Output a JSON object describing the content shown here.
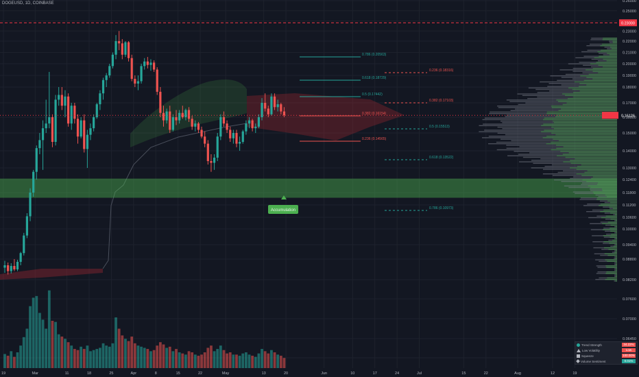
{
  "header": {
    "symbol": "DOGEUSD, 1D, COINBASE"
  },
  "colors": {
    "background": "#131722",
    "grid": "#1e222d",
    "up": "#26a69a",
    "down": "#ef5350",
    "green_zone": "#4caf50",
    "red_zone": "#b22833",
    "price_tag": "#f23645",
    "fib_green": "#26a69a",
    "fib_red": "#ef5350"
  },
  "price_axis": {
    "labels": [
      "0.26000",
      "0.25000",
      "0.24000",
      "0.23000",
      "0.22000",
      "0.21000",
      "0.20000",
      "0.19000",
      "0.18000",
      "0.17000",
      "0.16000",
      "0.15000",
      "0.14000",
      "0.13000",
      "0.12400",
      "0.11800",
      "0.11200",
      "0.10600",
      "0.10000",
      "0.09400",
      "0.08800",
      "0.08200",
      "0.07600",
      "0.07000",
      "0.06450",
      "0.05900",
      "0.05400",
      "0.04900",
      "0.04400",
      "0.03900",
      "0.03400"
    ],
    "current_price_tag": "0.16126",
    "resistance_tag": "0.23000"
  },
  "time_axis": [
    {
      "label": "19",
      "day": 0
    },
    {
      "label": "Mar",
      "day": 10
    },
    {
      "label": "11",
      "day": 20
    },
    {
      "label": "18",
      "day": 27
    },
    {
      "label": "25",
      "day": 34
    },
    {
      "label": "Apr",
      "day": 41
    },
    {
      "label": "8",
      "day": 48
    },
    {
      "label": "15",
      "day": 55
    },
    {
      "label": "22",
      "day": 62
    },
    {
      "label": "May",
      "day": 70
    },
    {
      "label": "13",
      "day": 82
    },
    {
      "label": "20",
      "day": 89
    },
    {
      "label": "Jun",
      "day": 101
    },
    {
      "label": "10",
      "day": 110
    },
    {
      "label": "17",
      "day": 117
    },
    {
      "label": "24",
      "day": 124
    },
    {
      "label": "Jul",
      "day": 131
    },
    {
      "label": "15",
      "day": 145
    },
    {
      "label": "22",
      "day": 152
    },
    {
      "label": "Aug",
      "day": 162
    },
    {
      "label": "12",
      "day": 173
    },
    {
      "label": "19",
      "day": 180
    }
  ],
  "fib_levels": [
    {
      "text": "0.786 (0.20563)",
      "color": "green"
    },
    {
      "text": "0.618 (0.18729)",
      "color": "green"
    },
    {
      "text": "0.236 (0.18316)",
      "color": "red"
    },
    {
      "text": "0.5 (0.17442)",
      "color": "green"
    },
    {
      "text": "0.382 (0.17103)",
      "color": "red"
    },
    {
      "text": "0.382 (0.16154)",
      "color": "red"
    },
    {
      "text": "0.5 (0.15513)",
      "color": "green"
    },
    {
      "text": "0.236 (0.14565)",
      "color": "red"
    },
    {
      "text": "0.618 (0.13522)",
      "color": "green"
    },
    {
      "text": "0.786 (0.10973)",
      "color": "green"
    }
  ],
  "annotation": {
    "text": "Accumulation"
  },
  "indicator_panel": [
    {
      "label": "Trend Strength",
      "value": "34.22%",
      "icon": "circle-icon",
      "color": "#ef5350"
    },
    {
      "label": "Low Volatility",
      "value": "Low",
      "icon": "triangle-icon",
      "color": "#ef5350"
    },
    {
      "label": "Squeeze",
      "value": "100.00%",
      "icon": "square-icon",
      "color": "#ef5350"
    },
    {
      "label": "Volume Sentiment",
      "value": "0.01%",
      "icon": "diamond-icon",
      "color": "#26a69a"
    }
  ],
  "chart_data": {
    "type": "candlestick",
    "symbol": "DOGEUSD",
    "interval": "1D",
    "exchange": "COINBASE",
    "candles": [
      {
        "o": 0.0855,
        "h": 0.0875,
        "l": 0.084,
        "c": 0.0862,
        "v": 25
      },
      {
        "o": 0.0862,
        "h": 0.087,
        "l": 0.0835,
        "c": 0.0845,
        "v": 22
      },
      {
        "o": 0.0845,
        "h": 0.0868,
        "l": 0.0838,
        "c": 0.086,
        "v": 30
      },
      {
        "o": 0.086,
        "h": 0.088,
        "l": 0.0845,
        "c": 0.085,
        "v": 20
      },
      {
        "o": 0.085,
        "h": 0.0878,
        "l": 0.0845,
        "c": 0.0872,
        "v": 28
      },
      {
        "o": 0.0872,
        "h": 0.091,
        "l": 0.0862,
        "c": 0.0905,
        "v": 40
      },
      {
        "o": 0.0905,
        "h": 0.0985,
        "l": 0.0895,
        "c": 0.0975,
        "v": 55
      },
      {
        "o": 0.0975,
        "h": 0.108,
        "l": 0.0965,
        "c": 0.1065,
        "v": 70
      },
      {
        "o": 0.1065,
        "h": 0.12,
        "l": 0.104,
        "c": 0.118,
        "v": 110
      },
      {
        "o": 0.118,
        "h": 0.129,
        "l": 0.116,
        "c": 0.128,
        "v": 125
      },
      {
        "o": 0.128,
        "h": 0.143,
        "l": 0.124,
        "c": 0.1415,
        "v": 128
      },
      {
        "o": 0.1415,
        "h": 0.15,
        "l": 0.138,
        "c": 0.146,
        "v": 98
      },
      {
        "o": 0.146,
        "h": 0.158,
        "l": 0.129,
        "c": 0.153,
        "v": 86
      },
      {
        "o": 0.153,
        "h": 0.172,
        "l": 0.15,
        "c": 0.156,
        "v": 70
      },
      {
        "o": 0.156,
        "h": 0.193,
        "l": 0.153,
        "c": 0.16,
        "v": 138
      },
      {
        "o": 0.16,
        "h": 0.162,
        "l": 0.142,
        "c": 0.145,
        "v": 84
      },
      {
        "o": 0.145,
        "h": 0.175,
        "l": 0.143,
        "c": 0.172,
        "v": 82
      },
      {
        "o": 0.172,
        "h": 0.18,
        "l": 0.168,
        "c": 0.175,
        "v": 60
      },
      {
        "o": 0.175,
        "h": 0.18,
        "l": 0.165,
        "c": 0.168,
        "v": 56
      },
      {
        "o": 0.168,
        "h": 0.178,
        "l": 0.16,
        "c": 0.174,
        "v": 52
      },
      {
        "o": 0.174,
        "h": 0.176,
        "l": 0.154,
        "c": 0.156,
        "v": 46
      },
      {
        "o": 0.156,
        "h": 0.17,
        "l": 0.152,
        "c": 0.168,
        "v": 40
      },
      {
        "o": 0.168,
        "h": 0.17,
        "l": 0.156,
        "c": 0.159,
        "v": 34
      },
      {
        "o": 0.159,
        "h": 0.162,
        "l": 0.144,
        "c": 0.148,
        "v": 32
      },
      {
        "o": 0.148,
        "h": 0.16,
        "l": 0.147,
        "c": 0.158,
        "v": 38
      },
      {
        "o": 0.158,
        "h": 0.162,
        "l": 0.139,
        "c": 0.141,
        "v": 34
      },
      {
        "o": 0.141,
        "h": 0.152,
        "l": 0.13,
        "c": 0.149,
        "v": 40
      },
      {
        "o": 0.149,
        "h": 0.156,
        "l": 0.146,
        "c": 0.153,
        "v": 30
      },
      {
        "o": 0.153,
        "h": 0.162,
        "l": 0.151,
        "c": 0.16,
        "v": 32
      },
      {
        "o": 0.16,
        "h": 0.17,
        "l": 0.159,
        "c": 0.169,
        "v": 34
      },
      {
        "o": 0.169,
        "h": 0.178,
        "l": 0.165,
        "c": 0.176,
        "v": 36
      },
      {
        "o": 0.176,
        "h": 0.188,
        "l": 0.172,
        "c": 0.186,
        "v": 44
      },
      {
        "o": 0.186,
        "h": 0.192,
        "l": 0.18,
        "c": 0.19,
        "v": 40
      },
      {
        "o": 0.19,
        "h": 0.2,
        "l": 0.188,
        "c": 0.198,
        "v": 38
      },
      {
        "o": 0.198,
        "h": 0.21,
        "l": 0.196,
        "c": 0.208,
        "v": 44
      },
      {
        "o": 0.208,
        "h": 0.226,
        "l": 0.204,
        "c": 0.22,
        "v": 90
      },
      {
        "o": 0.22,
        "h": 0.23,
        "l": 0.212,
        "c": 0.218,
        "v": 70
      },
      {
        "o": 0.218,
        "h": 0.222,
        "l": 0.204,
        "c": 0.208,
        "v": 58
      },
      {
        "o": 0.208,
        "h": 0.22,
        "l": 0.206,
        "c": 0.219,
        "v": 52
      },
      {
        "o": 0.219,
        "h": 0.22,
        "l": 0.202,
        "c": 0.205,
        "v": 48
      },
      {
        "o": 0.205,
        "h": 0.208,
        "l": 0.185,
        "c": 0.187,
        "v": 56
      },
      {
        "o": 0.187,
        "h": 0.19,
        "l": 0.18,
        "c": 0.183,
        "v": 44
      },
      {
        "o": 0.183,
        "h": 0.19,
        "l": 0.178,
        "c": 0.185,
        "v": 40
      },
      {
        "o": 0.185,
        "h": 0.2,
        "l": 0.183,
        "c": 0.198,
        "v": 38
      },
      {
        "o": 0.198,
        "h": 0.205,
        "l": 0.195,
        "c": 0.202,
        "v": 36
      },
      {
        "o": 0.202,
        "h": 0.206,
        "l": 0.196,
        "c": 0.199,
        "v": 34
      },
      {
        "o": 0.199,
        "h": 0.204,
        "l": 0.194,
        "c": 0.201,
        "v": 30
      },
      {
        "o": 0.201,
        "h": 0.203,
        "l": 0.193,
        "c": 0.195,
        "v": 32
      },
      {
        "o": 0.195,
        "h": 0.197,
        "l": 0.175,
        "c": 0.177,
        "v": 40
      },
      {
        "o": 0.177,
        "h": 0.18,
        "l": 0.16,
        "c": 0.163,
        "v": 46
      },
      {
        "o": 0.163,
        "h": 0.168,
        "l": 0.154,
        "c": 0.158,
        "v": 42
      },
      {
        "o": 0.158,
        "h": 0.166,
        "l": 0.156,
        "c": 0.164,
        "v": 36
      },
      {
        "o": 0.164,
        "h": 0.168,
        "l": 0.15,
        "c": 0.152,
        "v": 38
      },
      {
        "o": 0.152,
        "h": 0.162,
        "l": 0.151,
        "c": 0.16,
        "v": 30
      },
      {
        "o": 0.16,
        "h": 0.165,
        "l": 0.155,
        "c": 0.158,
        "v": 34
      },
      {
        "o": 0.158,
        "h": 0.165,
        "l": 0.156,
        "c": 0.163,
        "v": 28
      },
      {
        "o": 0.163,
        "h": 0.168,
        "l": 0.159,
        "c": 0.16,
        "v": 26
      },
      {
        "o": 0.16,
        "h": 0.166,
        "l": 0.158,
        "c": 0.165,
        "v": 24
      },
      {
        "o": 0.165,
        "h": 0.167,
        "l": 0.157,
        "c": 0.159,
        "v": 30
      },
      {
        "o": 0.159,
        "h": 0.161,
        "l": 0.152,
        "c": 0.154,
        "v": 28
      },
      {
        "o": 0.154,
        "h": 0.158,
        "l": 0.151,
        "c": 0.156,
        "v": 24
      },
      {
        "o": 0.156,
        "h": 0.157,
        "l": 0.15,
        "c": 0.152,
        "v": 22
      },
      {
        "o": 0.152,
        "h": 0.154,
        "l": 0.147,
        "c": 0.148,
        "v": 24
      },
      {
        "o": 0.148,
        "h": 0.151,
        "l": 0.142,
        "c": 0.144,
        "v": 28
      },
      {
        "o": 0.144,
        "h": 0.146,
        "l": 0.132,
        "c": 0.134,
        "v": 36
      },
      {
        "o": 0.134,
        "h": 0.138,
        "l": 0.128,
        "c": 0.133,
        "v": 40
      },
      {
        "o": 0.133,
        "h": 0.138,
        "l": 0.129,
        "c": 0.136,
        "v": 30
      },
      {
        "o": 0.136,
        "h": 0.15,
        "l": 0.134,
        "c": 0.148,
        "v": 34
      },
      {
        "o": 0.148,
        "h": 0.162,
        "l": 0.146,
        "c": 0.16,
        "v": 40
      },
      {
        "o": 0.16,
        "h": 0.164,
        "l": 0.154,
        "c": 0.156,
        "v": 32
      },
      {
        "o": 0.156,
        "h": 0.158,
        "l": 0.15,
        "c": 0.152,
        "v": 26
      },
      {
        "o": 0.152,
        "h": 0.154,
        "l": 0.145,
        "c": 0.147,
        "v": 28
      },
      {
        "o": 0.147,
        "h": 0.152,
        "l": 0.144,
        "c": 0.15,
        "v": 24
      },
      {
        "o": 0.15,
        "h": 0.152,
        "l": 0.142,
        "c": 0.144,
        "v": 24
      },
      {
        "o": 0.144,
        "h": 0.148,
        "l": 0.14,
        "c": 0.145,
        "v": 22
      },
      {
        "o": 0.145,
        "h": 0.152,
        "l": 0.144,
        "c": 0.151,
        "v": 26
      },
      {
        "o": 0.151,
        "h": 0.158,
        "l": 0.149,
        "c": 0.156,
        "v": 28
      },
      {
        "o": 0.156,
        "h": 0.16,
        "l": 0.153,
        "c": 0.158,
        "v": 24
      },
      {
        "o": 0.158,
        "h": 0.159,
        "l": 0.151,
        "c": 0.153,
        "v": 22
      },
      {
        "o": 0.153,
        "h": 0.156,
        "l": 0.15,
        "c": 0.154,
        "v": 20
      },
      {
        "o": 0.154,
        "h": 0.162,
        "l": 0.153,
        "c": 0.16,
        "v": 26
      },
      {
        "o": 0.16,
        "h": 0.173,
        "l": 0.158,
        "c": 0.17,
        "v": 34
      },
      {
        "o": 0.17,
        "h": 0.176,
        "l": 0.164,
        "c": 0.166,
        "v": 30
      },
      {
        "o": 0.166,
        "h": 0.168,
        "l": 0.16,
        "c": 0.162,
        "v": 26
      },
      {
        "o": 0.162,
        "h": 0.176,
        "l": 0.161,
        "c": 0.174,
        "v": 32
      },
      {
        "o": 0.174,
        "h": 0.176,
        "l": 0.165,
        "c": 0.167,
        "v": 28
      },
      {
        "o": 0.167,
        "h": 0.172,
        "l": 0.164,
        "c": 0.169,
        "v": 24
      },
      {
        "o": 0.169,
        "h": 0.17,
        "l": 0.162,
        "c": 0.164,
        "v": 22
      },
      {
        "o": 0.164,
        "h": 0.167,
        "l": 0.16,
        "c": 0.1613,
        "v": 18
      }
    ]
  }
}
